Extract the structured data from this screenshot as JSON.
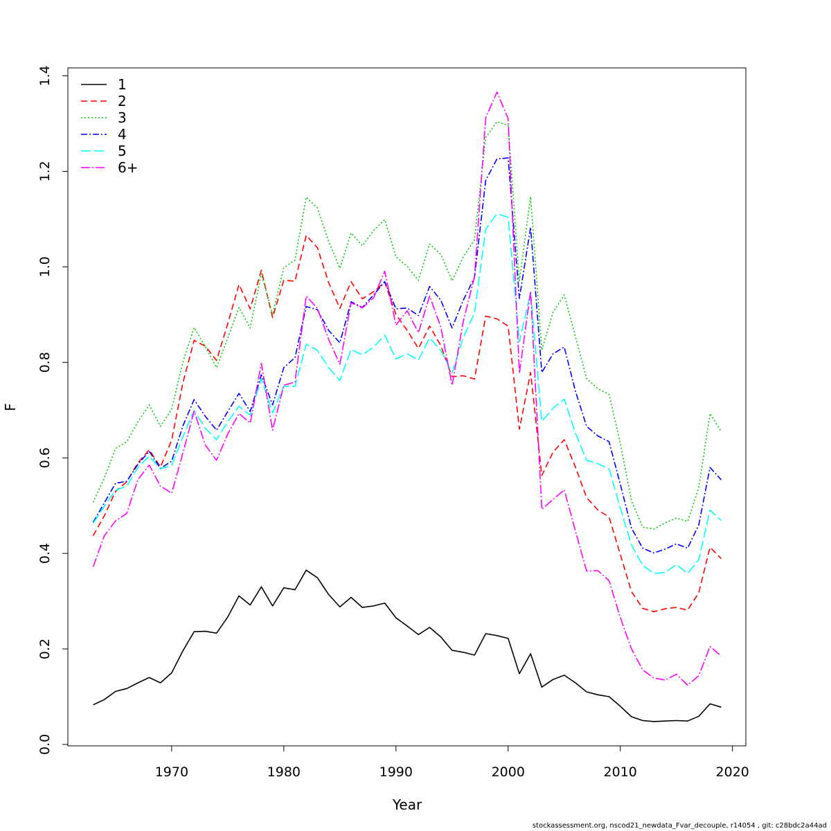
{
  "chart_data": {
    "type": "line",
    "xlabel": "Year",
    "ylabel": "F",
    "xlim": [
      1961,
      2021
    ],
    "ylim": [
      0,
      1.4
    ],
    "xticks": [
      "1970",
      "1980",
      "1990",
      "2000",
      "2010",
      "2020"
    ],
    "yticks": [
      "0.0",
      "0.2",
      "0.4",
      "0.6",
      "0.8",
      "1.0",
      "1.2",
      "1.4"
    ],
    "legend_position": "top-left",
    "grid": false,
    "x": [
      1963,
      1964,
      1965,
      1966,
      1967,
      1968,
      1969,
      1970,
      1971,
      1972,
      1973,
      1974,
      1975,
      1976,
      1977,
      1978,
      1979,
      1980,
      1981,
      1982,
      1983,
      1984,
      1985,
      1986,
      1987,
      1988,
      1989,
      1990,
      1991,
      1992,
      1993,
      1994,
      1995,
      1996,
      1997,
      1998,
      1999,
      2000,
      2001,
      2002,
      2003,
      2004,
      2005,
      2006,
      2007,
      2008,
      2009,
      2010,
      2011,
      2012,
      2013,
      2014,
      2015,
      2016,
      2017,
      2018,
      2019
    ],
    "series": [
      {
        "name": "1",
        "color": "#000000",
        "dash": "",
        "values": [
          0.083,
          0.094,
          0.111,
          0.117,
          0.129,
          0.14,
          0.129,
          0.15,
          0.196,
          0.236,
          0.237,
          0.233,
          0.267,
          0.311,
          0.292,
          0.33,
          0.29,
          0.328,
          0.324,
          0.365,
          0.349,
          0.314,
          0.288,
          0.308,
          0.287,
          0.29,
          0.296,
          0.265,
          0.248,
          0.23,
          0.245,
          0.225,
          0.197,
          0.193,
          0.187,
          0.232,
          0.228,
          0.222,
          0.148,
          0.19,
          0.12,
          0.136,
          0.145,
          0.129,
          0.11,
          0.104,
          0.1,
          0.08,
          0.058,
          0.05,
          0.048,
          0.049,
          0.05,
          0.049,
          0.059,
          0.085,
          0.078
        ]
      },
      {
        "name": "2",
        "color": "#ff0000",
        "dash": "9 5",
        "values": [
          0.437,
          0.479,
          0.53,
          0.55,
          0.59,
          0.617,
          0.581,
          0.637,
          0.757,
          0.846,
          0.834,
          0.804,
          0.881,
          0.963,
          0.912,
          0.993,
          0.894,
          0.972,
          0.97,
          1.066,
          1.04,
          0.967,
          0.913,
          0.969,
          0.933,
          0.948,
          0.968,
          0.9,
          0.867,
          0.829,
          0.876,
          0.835,
          0.77,
          0.772,
          0.765,
          0.897,
          0.891,
          0.876,
          0.66,
          0.779,
          0.563,
          0.612,
          0.638,
          0.581,
          0.517,
          0.491,
          0.476,
          0.398,
          0.32,
          0.285,
          0.278,
          0.284,
          0.287,
          0.281,
          0.318,
          0.413,
          0.389
        ]
      },
      {
        "name": "3",
        "color": "#00cc00",
        "dash": "2 3",
        "values": [
          0.507,
          0.558,
          0.62,
          0.634,
          0.676,
          0.711,
          0.666,
          0.702,
          0.801,
          0.873,
          0.833,
          0.789,
          0.851,
          0.915,
          0.872,
          0.986,
          0.9,
          0.998,
          1.014,
          1.146,
          1.123,
          1.053,
          0.997,
          1.071,
          1.044,
          1.076,
          1.099,
          1.021,
          1.001,
          0.972,
          1.048,
          1.026,
          0.971,
          1.021,
          1.057,
          1.271,
          1.304,
          1.296,
          0.971,
          1.147,
          0.826,
          0.905,
          0.941,
          0.855,
          0.766,
          0.745,
          0.733,
          0.631,
          0.51,
          0.455,
          0.451,
          0.464,
          0.474,
          0.467,
          0.538,
          0.693,
          0.655
        ]
      },
      {
        "name": "4",
        "color": "#0000ff",
        "dash": "9 3 2 3",
        "values": [
          0.465,
          0.506,
          0.547,
          0.551,
          0.587,
          0.614,
          0.578,
          0.593,
          0.667,
          0.722,
          0.687,
          0.658,
          0.697,
          0.735,
          0.697,
          0.774,
          0.711,
          0.789,
          0.81,
          0.917,
          0.91,
          0.867,
          0.841,
          0.927,
          0.915,
          0.941,
          0.969,
          0.912,
          0.914,
          0.898,
          0.959,
          0.93,
          0.872,
          0.93,
          0.978,
          1.181,
          1.226,
          1.228,
          0.934,
          1.083,
          0.779,
          0.818,
          0.832,
          0.74,
          0.666,
          0.646,
          0.634,
          0.545,
          0.453,
          0.411,
          0.401,
          0.409,
          0.42,
          0.411,
          0.46,
          0.58,
          0.554
        ]
      },
      {
        "name": "5",
        "color": "#00ffff",
        "dash": "14 5",
        "values": [
          0.463,
          0.499,
          0.532,
          0.541,
          0.58,
          0.604,
          0.577,
          0.584,
          0.644,
          0.699,
          0.662,
          0.638,
          0.676,
          0.708,
          0.689,
          0.766,
          0.694,
          0.75,
          0.75,
          0.838,
          0.825,
          0.789,
          0.762,
          0.827,
          0.816,
          0.832,
          0.857,
          0.807,
          0.818,
          0.805,
          0.851,
          0.825,
          0.778,
          0.852,
          0.903,
          1.079,
          1.111,
          1.104,
          0.843,
          0.946,
          0.676,
          0.704,
          0.723,
          0.652,
          0.595,
          0.588,
          0.577,
          0.495,
          0.418,
          0.375,
          0.358,
          0.36,
          0.377,
          0.358,
          0.387,
          0.491,
          0.469
        ]
      },
      {
        "name": "6+",
        "color": "#ff00ff",
        "dash": "13 3 2 3",
        "values": [
          0.372,
          0.437,
          0.468,
          0.484,
          0.555,
          0.585,
          0.541,
          0.526,
          0.61,
          0.698,
          0.627,
          0.595,
          0.65,
          0.693,
          0.673,
          0.798,
          0.658,
          0.752,
          0.759,
          0.939,
          0.913,
          0.848,
          0.796,
          0.925,
          0.914,
          0.935,
          0.991,
          0.878,
          0.908,
          0.862,
          0.939,
          0.874,
          0.752,
          0.886,
          0.979,
          1.312,
          1.366,
          1.31,
          0.777,
          0.949,
          0.492,
          0.513,
          0.533,
          0.447,
          0.363,
          0.364,
          0.343,
          0.266,
          0.2,
          0.156,
          0.139,
          0.135,
          0.147,
          0.124,
          0.144,
          0.205,
          0.185
        ]
      }
    ]
  },
  "footnote": "stockassessment.org, nscod21_newdata_Fvar_decouple, r14054 , git: c28bdc2a44ad"
}
